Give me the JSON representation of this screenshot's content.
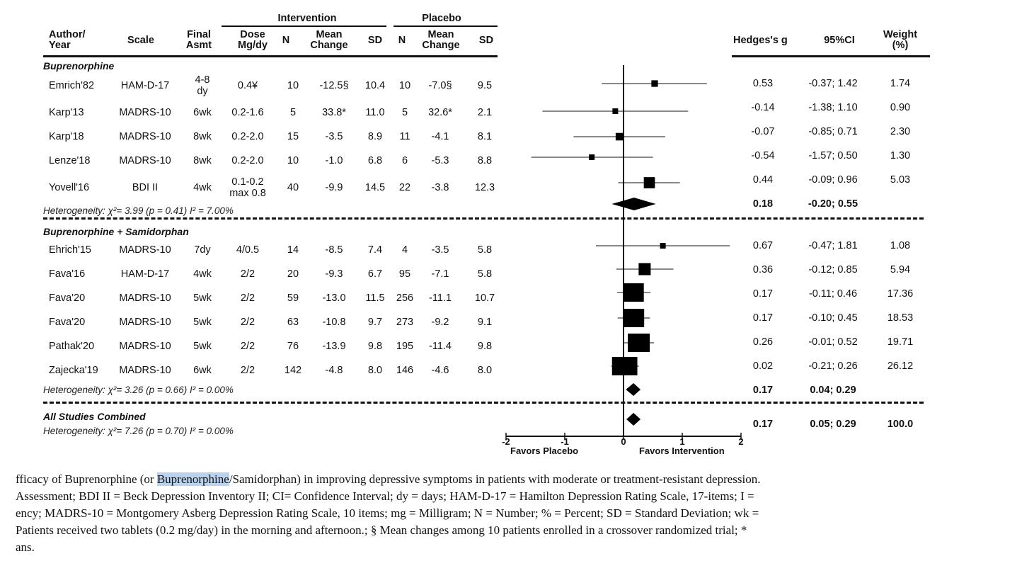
{
  "headers": {
    "intervention": "Intervention",
    "placebo": "Placebo",
    "author_year": [
      "Author/",
      "Year"
    ],
    "scale": "Scale",
    "final_asmt": [
      "Final",
      "Asmt"
    ],
    "dose": [
      "Dose",
      "Mg/dy"
    ],
    "n": "N",
    "mean_change": [
      "Mean",
      "Change"
    ],
    "sd": "SD",
    "hedges": "Hedges's g",
    "ci": "95%CI",
    "weight": [
      "Weight",
      "(%)"
    ]
  },
  "groups": [
    {
      "title": "Buprenorphine",
      "studies": [
        {
          "author": "Emrich'82",
          "scale": "HAM-D-17",
          "asmt": [
            "4-8",
            "dy"
          ],
          "dose": [
            "0.4¥"
          ],
          "n_i": "10",
          "mc_i": "-12.5§",
          "sd_i": "10.4",
          "n_p": "10",
          "mc_p": "-7.0§",
          "sd_p": "9.5",
          "g": "0.53",
          "ci": "-0.37; 1.42",
          "weight": "1.74"
        },
        {
          "author": "Karp'13",
          "scale": "MADRS-10",
          "asmt": [
            "6wk"
          ],
          "dose": [
            "0.2-1.6"
          ],
          "n_i": "5",
          "mc_i": "33.8*",
          "sd_i": "11.0",
          "n_p": "5",
          "mc_p": "32.6*",
          "sd_p": "2.1",
          "g": "-0.14",
          "ci": "-1.38; 1.10",
          "weight": "0.90"
        },
        {
          "author": "Karp'18",
          "scale": "MADRS-10",
          "asmt": [
            "8wk"
          ],
          "dose": [
            "0.2-2.0"
          ],
          "n_i": "15",
          "mc_i": "-3.5",
          "sd_i": "8.9",
          "n_p": "11",
          "mc_p": "-4.1",
          "sd_p": "8.1",
          "g": "-0.07",
          "ci": "-0.85; 0.71",
          "weight": "2.30"
        },
        {
          "author": "Lenze'18",
          "scale": "MADRS-10",
          "asmt": [
            "8wk"
          ],
          "dose": [
            "0.2-2.0"
          ],
          "n_i": "10",
          "mc_i": "-1.0",
          "sd_i": "6.8",
          "n_p": "6",
          "mc_p": "-5.3",
          "sd_p": "8.8",
          "g": "-0.54",
          "ci": "-1.57; 0.50",
          "weight": "1.30"
        },
        {
          "author": "Yovell'16",
          "scale": "BDI II",
          "asmt": [
            "4wk"
          ],
          "dose": [
            "0.1-0.2",
            "max 0.8"
          ],
          "n_i": "40",
          "mc_i": "-9.9",
          "sd_i": "14.5",
          "n_p": "22",
          "mc_p": "-3.8",
          "sd_p": "12.3",
          "g": "0.44",
          "ci": "-0.09; 0.96",
          "weight": "5.03"
        }
      ],
      "heterogeneity": "Heterogeneity: χ²= 3.99 (p = 0.41) I² = 7.00%",
      "pooled_g": "0.18",
      "pooled_ci": "-0.20; 0.55"
    },
    {
      "title": "Buprenorphine + Samidorphan",
      "studies": [
        {
          "author": "Ehrich'15",
          "scale": "MADRS-10",
          "asmt": [
            "7dy"
          ],
          "dose": [
            "4/0.5"
          ],
          "n_i": "14",
          "mc_i": "-8.5",
          "sd_i": "7.4",
          "n_p": "4",
          "mc_p": "-3.5",
          "sd_p": "5.8",
          "g": "0.67",
          "ci": "-0.47; 1.81",
          "weight": "1.08"
        },
        {
          "author": "Fava'16",
          "scale": "HAM-D-17",
          "asmt": [
            "4wk"
          ],
          "dose": [
            "2/2"
          ],
          "n_i": "20",
          "mc_i": "-9.3",
          "sd_i": "6.7",
          "n_p": "95",
          "mc_p": "-7.1",
          "sd_p": "5.8",
          "g": "0.36",
          "ci": "-0.12; 0.85",
          "weight": "5.94"
        },
        {
          "author": "Fava'20",
          "scale": "MADRS-10",
          "asmt": [
            "5wk"
          ],
          "dose": [
            "2/2"
          ],
          "n_i": "59",
          "mc_i": "-13.0",
          "sd_i": "11.5",
          "n_p": "256",
          "mc_p": "-11.1",
          "sd_p": "10.7",
          "g": "0.17",
          "ci": "-0.11; 0.46",
          "weight": "17.36"
        },
        {
          "author": "Fava'20",
          "scale": "MADRS-10",
          "asmt": [
            "5wk"
          ],
          "dose": [
            "2/2"
          ],
          "n_i": "63",
          "mc_i": "-10.8",
          "sd_i": "9.7",
          "n_p": "273",
          "mc_p": "-9.2",
          "sd_p": "9.1",
          "g": "0.17",
          "ci": "-0.10; 0.45",
          "weight": "18.53"
        },
        {
          "author": "Pathak'20",
          "scale": "MADRS-10",
          "asmt": [
            "5wk"
          ],
          "dose": [
            "2/2"
          ],
          "n_i": "76",
          "mc_i": "-13.9",
          "sd_i": "9.8",
          "n_p": "195",
          "mc_p": "-11.4",
          "sd_p": "9.8",
          "g": "0.26",
          "ci": "-0.01; 0.52",
          "weight": "19.71"
        },
        {
          "author": "Zajecka'19",
          "scale": "MADRS-10",
          "asmt": [
            "6wk"
          ],
          "dose": [
            "2/2"
          ],
          "n_i": "142",
          "mc_i": "-4.8",
          "sd_i": "8.0",
          "n_p": "146",
          "mc_p": "-4.6",
          "sd_p": "8.0",
          "g": "0.02",
          "ci": "-0.21; 0.26",
          "weight": "26.12"
        }
      ],
      "heterogeneity": "Heterogeneity: χ²= 3.26 (p = 0.66) I² = 0.00%",
      "pooled_g": "0.17",
      "pooled_ci": "0.04; 0.29"
    }
  ],
  "combined": {
    "title": "All Studies Combined",
    "heterogeneity": "Heterogeneity: χ²= 7.26 (p = 0.70) I² = 0.00%",
    "g": "0.17",
    "ci": "0.05; 0.29",
    "weight": "100.0"
  },
  "axis": {
    "ticks": [
      "-2",
      "-1",
      "0",
      "1",
      "2"
    ],
    "favors_left": "Favors Placebo",
    "favors_right": "Favors Intervention"
  },
  "chart_data": {
    "type": "forest",
    "xlim": [
      -2,
      2
    ],
    "reference_line": 0,
    "xlabel_left": "Favors Placebo",
    "xlabel_right": "Favors Intervention",
    "series": [
      {
        "name": "Emrich'82",
        "g": 0.53,
        "lo": -0.37,
        "hi": 1.42,
        "weight": 1.74
      },
      {
        "name": "Karp'13",
        "g": -0.14,
        "lo": -1.38,
        "hi": 1.1,
        "weight": 0.9
      },
      {
        "name": "Karp'18",
        "g": -0.07,
        "lo": -0.85,
        "hi": 0.71,
        "weight": 2.3
      },
      {
        "name": "Lenze'18",
        "g": -0.54,
        "lo": -1.57,
        "hi": 0.5,
        "weight": 1.3
      },
      {
        "name": "Yovell'16",
        "g": 0.44,
        "lo": -0.09,
        "hi": 0.96,
        "weight": 5.03
      },
      {
        "name": "Buprenorphine pooled",
        "g": 0.18,
        "lo": -0.2,
        "hi": 0.55,
        "pooled": true
      },
      {
        "name": "Ehrich'15",
        "g": 0.67,
        "lo": -0.47,
        "hi": 1.81,
        "weight": 1.08
      },
      {
        "name": "Fava'16",
        "g": 0.36,
        "lo": -0.12,
        "hi": 0.85,
        "weight": 5.94
      },
      {
        "name": "Fava'20",
        "g": 0.17,
        "lo": -0.11,
        "hi": 0.46,
        "weight": 17.36
      },
      {
        "name": "Fava'20",
        "g": 0.17,
        "lo": -0.1,
        "hi": 0.45,
        "weight": 18.53
      },
      {
        "name": "Pathak'20",
        "g": 0.26,
        "lo": -0.01,
        "hi": 0.52,
        "weight": 19.71
      },
      {
        "name": "Zajecka'19",
        "g": 0.02,
        "lo": -0.21,
        "hi": 0.26,
        "weight": 26.12
      },
      {
        "name": "Buprenorphine + Samidorphan pooled",
        "g": 0.17,
        "lo": 0.04,
        "hi": 0.29,
        "pooled": true
      },
      {
        "name": "All Studies Combined",
        "g": 0.17,
        "lo": 0.05,
        "hi": 0.29,
        "pooled": true
      }
    ]
  },
  "caption": {
    "line1_pre": "fficacy of Buprenorphine (or ",
    "line1_hl": "Buprenorphine",
    "line1_post": "/Samidorphan) in improving depressive symptoms in patients with moderate or treatment-resistant depression.",
    "line2": "Assessment; BDI II = Beck Depression Inventory II; CI= Confidence Interval; dy = days; HAM-D-17 = Hamilton Depression Rating Scale, 17-items; I =",
    "line3": "ency; MADRS-10 = Montgomery Asberg Depression Rating Scale, 10 items; mg = Milligram; N = Number; % = Percent; SD = Standard Deviation; wk =",
    "line4": "Patients received two tablets (0.2 mg/day) in the morning and afternoon.; § Mean changes among 10 patients enrolled in a crossover randomized trial; *",
    "line5": "ans."
  }
}
